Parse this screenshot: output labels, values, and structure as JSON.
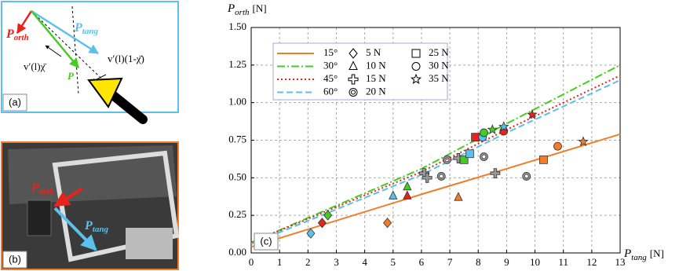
{
  "panel_a": {
    "label": "(a)",
    "p_orth": {
      "main": "P",
      "sub": "orth"
    },
    "p_tang": {
      "main": "P",
      "sub": "tang"
    },
    "p": "P",
    "v_chi": "v′(l)χ̄",
    "v_one_minus": "v′(l)(1-χ̄)"
  },
  "panel_b": {
    "label": "(b)",
    "p_orth": {
      "main": "P",
      "sub": "orth"
    },
    "p_tang": {
      "main": "P",
      "sub": "tang"
    }
  },
  "chart_data": {
    "type": "line",
    "label": "(c)",
    "y_label": {
      "main": "P",
      "sub": "orth",
      "unit": "[N]"
    },
    "x_label": {
      "main": "P",
      "sub": "tang",
      "unit": "[N]"
    },
    "xlim": [
      0,
      13
    ],
    "ylim": [
      0,
      1.5
    ],
    "grid": true,
    "xticks": [
      0,
      1,
      2,
      3,
      4,
      5,
      6,
      7,
      8,
      9,
      10,
      11,
      12,
      13
    ],
    "yticks": [
      {
        "value": 0,
        "label": "0.00"
      },
      {
        "value": 0.25,
        "label": "0.25"
      },
      {
        "value": 0.5,
        "label": "0.50"
      },
      {
        "value": 0.75,
        "label": "0.75"
      },
      {
        "value": 1,
        "label": "1.00"
      },
      {
        "value": 1.25,
        "label": "1.25"
      },
      {
        "value": 1.5,
        "label": "1.50"
      }
    ],
    "series": [
      {
        "name": "15°",
        "color": "#f07d2a",
        "dash": "solid",
        "x": [
          0,
          6,
          9,
          13
        ],
        "values": [
          0.04,
          0.39,
          0.56,
          0.79
        ]
      },
      {
        "name": "30°",
        "color": "#44cc22",
        "dash": "dashdot",
        "x": [
          0,
          6,
          9,
          13
        ],
        "values": [
          0.07,
          0.56,
          0.86,
          1.25
        ]
      },
      {
        "name": "45°",
        "color": "#e8221c",
        "dash": "dotted",
        "x": [
          0,
          6,
          9,
          13
        ],
        "values": [
          0.07,
          0.54,
          0.82,
          1.18
        ]
      },
      {
        "name": "60°",
        "color": "#5bc0eb",
        "dash": "dashed",
        "x": [
          0,
          6,
          9,
          13
        ],
        "values": [
          0.06,
          0.52,
          0.8,
          1.15
        ]
      }
    ],
    "point_series": [
      {
        "name": "5 N",
        "marker": "diamond",
        "x": [
          2.1,
          2.5,
          2.7,
          4.8
        ],
        "values": [
          0.13,
          0.2,
          0.25,
          0.2
        ],
        "colors": [
          "#5bc0eb",
          "#e8221c",
          "#44cc22",
          "#f07d2a"
        ]
      },
      {
        "name": "10 N",
        "marker": "triangle",
        "x": [
          5.0,
          5.5,
          5.5,
          7.3
        ],
        "values": [
          0.38,
          0.38,
          0.44,
          0.37
        ],
        "colors": [
          "#5bc0eb",
          "#e8221c",
          "#44cc22",
          "#f07d2a"
        ]
      },
      {
        "name": "15 N",
        "marker": "plus",
        "x": [
          6.1,
          6.2,
          7.3,
          8.6
        ],
        "values": [
          0.53,
          0.5,
          0.63,
          0.53
        ],
        "colors": [
          "#999999",
          "#999999",
          "#999999",
          "#999999"
        ]
      },
      {
        "name": "20 N",
        "marker": "dcircle",
        "x": [
          6.7,
          6.9,
          8.2,
          9.7
        ],
        "values": [
          0.51,
          0.62,
          0.64,
          0.51
        ],
        "colors": [
          "#999999",
          "#999999",
          "#999999",
          "#999999"
        ]
      },
      {
        "name": "25 N",
        "marker": "square",
        "x": [
          7.5,
          7.7,
          7.9,
          10.3
        ],
        "values": [
          0.62,
          0.66,
          0.77,
          0.62
        ],
        "colors": [
          "#44cc22",
          "#5bc0eb",
          "#e8221c",
          "#f07d2a"
        ]
      },
      {
        "name": "30 N",
        "marker": "circle",
        "x": [
          8.15,
          8.2,
          8.9,
          10.8
        ],
        "values": [
          0.77,
          0.8,
          0.81,
          0.71
        ],
        "colors": [
          "#5bc0eb",
          "#44cc22",
          "#e8221c",
          "#f07d2a"
        ]
      },
      {
        "name": "35 N",
        "marker": "star",
        "x": [
          8.5,
          8.9,
          9.9,
          11.7
        ],
        "values": [
          0.82,
          0.84,
          0.92,
          0.74
        ],
        "colors": [
          "#44cc22",
          "#5bc0eb",
          "#e8221c",
          "#f07d2a"
        ]
      }
    ]
  }
}
